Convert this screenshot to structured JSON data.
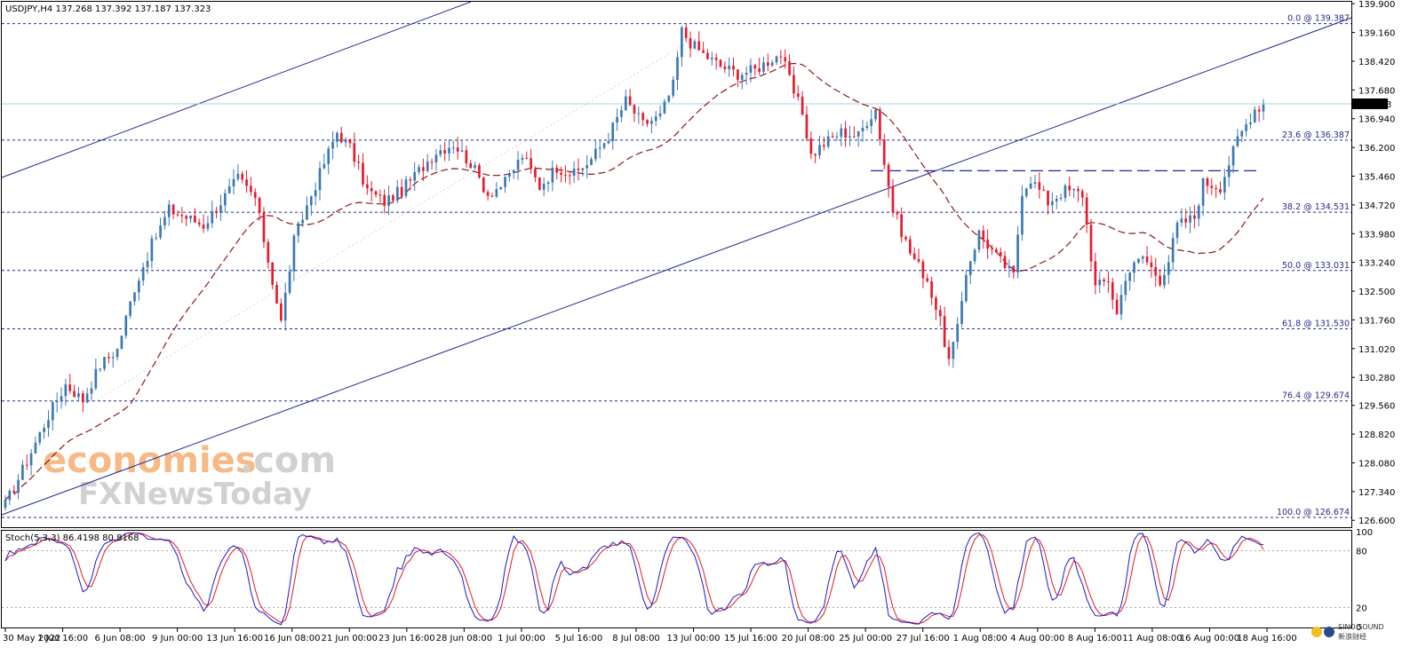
{
  "header": {
    "text": "USDJPY,H4  137.268 137.392 137.187 137.323"
  },
  "stoch_header": {
    "text": "Stoch(5,3,3) 86.4198 80.8168"
  },
  "watermark": {
    "line1_part1": "economies",
    "line1_part2": ".com",
    "line2": "FXNewsToday",
    "colors": {
      "orange": "#f5a25d",
      "grey": "#c2c2c2"
    }
  },
  "corner_logo": {
    "line1": "SINO SOUND",
    "line2": "新浪财经"
  },
  "colors": {
    "bull": "#3a78b5",
    "bear": "#e8192c",
    "ma": "#8b1a1a",
    "fib": "#1e2a8c",
    "channel": "#1e2a8c",
    "stoch_main": "#1a1ac8",
    "stoch_signal": "#e31a1a",
    "current_price_line": "#9fd6e0"
  },
  "chart_data": {
    "type": "candlestick",
    "symbol": "USDJPY",
    "timeframe": "H4",
    "ohlc_header": {
      "open": 137.268,
      "high": 137.392,
      "low": 137.187,
      "close": 137.323
    },
    "current_price": "137.323",
    "current_price_value": 137.323,
    "ylim": [
      126.4,
      139.95
    ],
    "y_ticks": [
      "139.900",
      "139.160",
      "138.420",
      "137.680",
      "136.940",
      "136.200",
      "135.460",
      "134.720",
      "133.980",
      "133.240",
      "132.500",
      "131.760",
      "131.020",
      "130.280",
      "129.560",
      "128.820",
      "128.080",
      "127.340",
      "126.600"
    ],
    "x_ticks": [
      "30 May 2022",
      "1 Jun 16:00",
      "6 Jun 08:00",
      "9 Jun 00:00",
      "13 Jun 16:00",
      "16 Jun 08:00",
      "21 Jun 00:00",
      "23 Jun 16:00",
      "28 Jun 08:00",
      "1 Jul 00:00",
      "5 Jul 16:00",
      "8 Jul 08:00",
      "13 Jul 00:00",
      "15 Jul 16:00",
      "20 Jul 08:00",
      "25 Jul 00:00",
      "27 Jul 16:00",
      "1 Aug 08:00",
      "4 Aug 00:00",
      "8 Aug 16:00",
      "11 Aug 08:00",
      "16 Aug 00:00",
      "18 Aug 16:00"
    ],
    "fib_levels": [
      {
        "label": "0.0 @ 139.387",
        "price": 139.387
      },
      {
        "label": "23.6 @ 136.387",
        "price": 136.387
      },
      {
        "label": "38.2 @ 134.531",
        "price": 134.531
      },
      {
        "label": "50.0 @ 133.031",
        "price": 133.031
      },
      {
        "label": "61.8 @ 131.530",
        "price": 131.53
      },
      {
        "label": "76.4 @ 129.674",
        "price": 129.674
      },
      {
        "label": "100.0 @ 126.674",
        "price": 126.674
      }
    ],
    "resistance_level": 135.6,
    "anchors": [
      [
        0,
        127.0
      ],
      [
        4,
        127.9
      ],
      [
        10,
        129.3
      ],
      [
        14,
        130.1
      ],
      [
        18,
        129.7
      ],
      [
        22,
        130.6
      ],
      [
        26,
        131.0
      ],
      [
        30,
        132.6
      ],
      [
        34,
        133.7
      ],
      [
        38,
        134.6
      ],
      [
        42,
        134.4
      ],
      [
        46,
        134.2
      ],
      [
        50,
        134.8
      ],
      [
        54,
        135.4
      ],
      [
        58,
        134.9
      ],
      [
        61,
        133.3
      ],
      [
        64,
        131.7
      ],
      [
        67,
        133.8
      ],
      [
        70,
        134.7
      ],
      [
        74,
        135.8
      ],
      [
        77,
        136.6
      ],
      [
        80,
        136.2
      ],
      [
        84,
        135.1
      ],
      [
        88,
        134.8
      ],
      [
        92,
        135.1
      ],
      [
        96,
        135.6
      ],
      [
        100,
        136.1
      ],
      [
        104,
        136.3
      ],
      [
        108,
        135.8
      ],
      [
        112,
        135.0
      ],
      [
        116,
        135.3
      ],
      [
        120,
        136.0
      ],
      [
        124,
        135.2
      ],
      [
        128,
        135.7
      ],
      [
        132,
        135.5
      ],
      [
        136,
        135.9
      ],
      [
        140,
        136.5
      ],
      [
        144,
        137.4
      ],
      [
        148,
        136.8
      ],
      [
        152,
        137.0
      ],
      [
        155,
        137.8
      ],
      [
        157,
        139.2
      ],
      [
        159,
        138.9
      ],
      [
        162,
        138.6
      ],
      [
        166,
        138.3
      ],
      [
        170,
        138.1
      ],
      [
        174,
        138.2
      ],
      [
        178,
        138.5
      ],
      [
        180,
        138.6
      ],
      [
        183,
        137.6
      ],
      [
        185,
        137.1
      ],
      [
        187,
        136.0
      ],
      [
        190,
        136.3
      ],
      [
        194,
        136.6
      ],
      [
        198,
        136.5
      ],
      [
        200,
        136.9
      ],
      [
        202,
        137.2
      ],
      [
        204,
        135.8
      ],
      [
        206,
        134.6
      ],
      [
        210,
        133.5
      ],
      [
        214,
        132.8
      ],
      [
        217,
        131.7
      ],
      [
        219,
        130.7
      ],
      [
        221,
        131.5
      ],
      [
        223,
        133.0
      ],
      [
        226,
        134.0
      ],
      [
        230,
        133.4
      ],
      [
        234,
        132.9
      ],
      [
        236,
        135.1
      ],
      [
        238,
        135.4
      ],
      [
        242,
        134.8
      ],
      [
        246,
        135.1
      ],
      [
        250,
        135.0
      ],
      [
        251,
        134.2
      ],
      [
        253,
        132.6
      ],
      [
        256,
        132.8
      ],
      [
        258,
        131.9
      ],
      [
        260,
        132.9
      ],
      [
        264,
        133.4
      ],
      [
        268,
        132.8
      ],
      [
        270,
        133.3
      ],
      [
        272,
        134.2
      ],
      [
        276,
        134.4
      ],
      [
        278,
        135.3
      ],
      [
        282,
        135.2
      ],
      [
        286,
        136.4
      ],
      [
        290,
        137.2
      ],
      [
        292,
        137.3
      ]
    ],
    "series": [
      {
        "name": "",
        "kind": "candles"
      },
      {
        "name": "",
        "kind": "moving-average"
      }
    ],
    "stochastic": {
      "params": "5,3,3",
      "main": 86.4198,
      "signal": 80.8168,
      "levels": [
        20,
        80
      ],
      "scale_labels": [
        "100",
        "80",
        "20",
        "0"
      ]
    }
  }
}
